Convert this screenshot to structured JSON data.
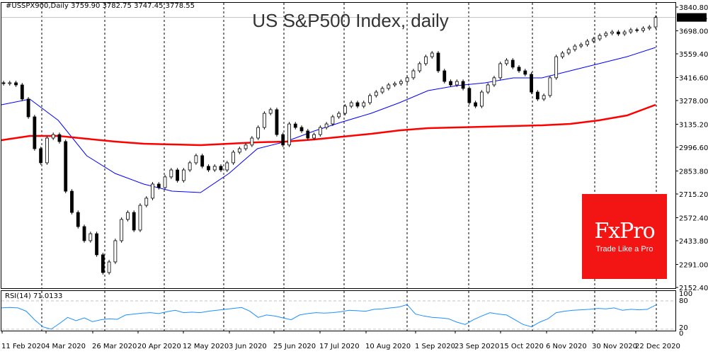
{
  "header": {
    "symbol_line": "#USSPX900,Daily  3759.90 3782.75 3747.45 3778.55"
  },
  "chart_data": {
    "type": "candlestick",
    "title": "US S&P500 Index, daily",
    "ylim": [
      2152.4,
      3840.8
    ],
    "y_ticks": [
      "3840.80",
      "3698.00",
      "3559.40",
      "3416.60",
      "3278.00",
      "3135.20",
      "2996.60",
      "2853.80",
      "2715.20",
      "2572.40",
      "2433.80",
      "2291.00",
      "2152.40"
    ],
    "x_ticks": [
      "11 Feb 2020",
      "4 Mar 2020",
      "26 Mar 2020",
      "20 Apr 2020",
      "12 May 2020",
      "3 Jun 2020",
      "25 Jun 2020",
      "17 Jul 2020",
      "10 Aug 2020",
      "1 Sep 2020",
      "23 Sep 2020",
      "15 Oct 2020",
      "6 Nov 2020",
      "30 Nov 2020",
      "22 Dec 2020"
    ],
    "last_price": "3778.55",
    "last_price_value": 3778.55,
    "closes": [
      3380,
      3385,
      3372,
      3287,
      3180,
      2988,
      2903,
      3052,
      3073,
      3031,
      2732,
      2604,
      2519,
      2434,
      2476,
      2349,
      2242,
      2306,
      2434,
      2562,
      2604,
      2498,
      2647,
      2690,
      2775,
      2754,
      2818,
      2860,
      2796,
      2860,
      2903,
      2946,
      2882,
      2860,
      2882,
      2860,
      2903,
      2967,
      2988,
      3010,
      3052,
      3116,
      3201,
      3223,
      3073,
      3010,
      3137,
      3116,
      3095,
      3052,
      3073,
      3116,
      3137,
      3180,
      3201,
      3244,
      3265,
      3244,
      3265,
      3308,
      3329,
      3351,
      3372,
      3380,
      3393,
      3415,
      3457,
      3500,
      3542,
      3564,
      3457,
      3393,
      3372,
      3393,
      3351,
      3265,
      3244,
      3329,
      3372,
      3415,
      3500,
      3521,
      3479,
      3457,
      3436,
      3329,
      3287,
      3308,
      3415,
      3542,
      3564,
      3585,
      3606,
      3615,
      3636,
      3649,
      3670,
      3683,
      3691,
      3679,
      3691,
      3704,
      3700,
      3713,
      3721,
      3778
    ],
    "series": [
      {
        "name": "MA blue",
        "color": "#0000ff",
        "values": [
          3252.5,
          3286.6,
          3158.7,
          2945.5,
          2838.9,
          2775,
          2732.3,
          2723.8,
          2838.9,
          2988.1,
          3030.8,
          3094.7,
          3150.2,
          3201.3,
          3265.3,
          3337.8,
          3367.6,
          3384.7,
          3414.5,
          3414.5,
          3457.2,
          3499.8,
          3542.5,
          3597.9
        ]
      },
      {
        "name": "MA red",
        "color": "#ff0000",
        "values": [
          3039.3,
          3064.9,
          3064.9,
          3047.8,
          3030.8,
          3018,
          3013.7,
          3009.5,
          3018,
          3026.5,
          3030.8,
          3043.6,
          3060.6,
          3077.7,
          3098.7,
          3111.8,
          3116.1,
          3120.3,
          3124.6,
          3128.9,
          3137.4,
          3158.7,
          3188.6,
          3252.5
        ]
      }
    ],
    "rsi": {
      "label": "RSI(14) 71.0133",
      "levels": [
        "100",
        "80",
        "20",
        "0"
      ],
      "color": "#1e90ff",
      "values": [
        65,
        66,
        65,
        58,
        40,
        25,
        20,
        32,
        45,
        38,
        44,
        36,
        40,
        42,
        41,
        50,
        52,
        54,
        55,
        53,
        57,
        60,
        55,
        56,
        55,
        58,
        60,
        62,
        64,
        66,
        58,
        45,
        50,
        48,
        44,
        40,
        50,
        53,
        55,
        54,
        55,
        57,
        60,
        59,
        58,
        62,
        63,
        65,
        67,
        72,
        52,
        48,
        45,
        44,
        42,
        35,
        30,
        40,
        48,
        55,
        52,
        50,
        40,
        30,
        25,
        35,
        42,
        55,
        58,
        60,
        61,
        62,
        64,
        63,
        65,
        60,
        62,
        61,
        62,
        71
      ]
    }
  },
  "logo": {
    "brand": "FxPro",
    "tagline": "Trade Like a Pro",
    "color": "#f31414"
  }
}
